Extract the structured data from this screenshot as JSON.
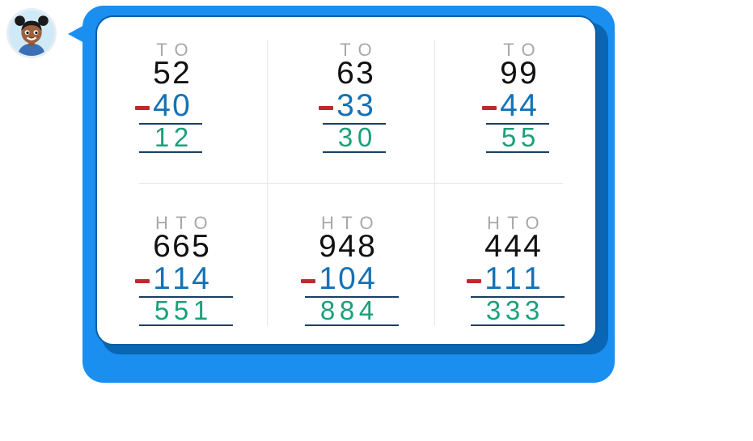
{
  "problems": [
    {
      "headers": [
        "T",
        "O"
      ],
      "top": [
        "5",
        "2"
      ],
      "bottom": [
        "4",
        "0"
      ],
      "answer": [
        "1",
        "2"
      ]
    },
    {
      "headers": [
        "T",
        "O"
      ],
      "top": [
        "6",
        "3"
      ],
      "bottom": [
        "3",
        "3"
      ],
      "answer": [
        "3",
        "0"
      ]
    },
    {
      "headers": [
        "T",
        "O"
      ],
      "top": [
        "9",
        "9"
      ],
      "bottom": [
        "4",
        "4"
      ],
      "answer": [
        "5",
        "5"
      ]
    },
    {
      "headers": [
        "H",
        "T",
        "O"
      ],
      "top": [
        "6",
        "6",
        "5"
      ],
      "bottom": [
        "1",
        "1",
        "4"
      ],
      "answer": [
        "5",
        "5",
        "1"
      ]
    },
    {
      "headers": [
        "H",
        "T",
        "O"
      ],
      "top": [
        "9",
        "4",
        "8"
      ],
      "bottom": [
        "1",
        "0",
        "4"
      ],
      "answer": [
        "8",
        "8",
        "4"
      ]
    },
    {
      "headers": [
        "H",
        "T",
        "O"
      ],
      "top": [
        "4",
        "4",
        "4"
      ],
      "bottom": [
        "1",
        "1",
        "1"
      ],
      "answer": [
        "3",
        "3",
        "3"
      ]
    }
  ],
  "colors": {
    "bubble": "#1a8ff0",
    "card_border": "#0a5fa8",
    "header": "#a8a8a8",
    "top_digits": "#111111",
    "bottom_digits": "#1572b6",
    "answer_digits": "#1aa079",
    "minus": "#c0292b",
    "rule": "#1a3e63"
  },
  "avatar": "girl-avatar-icon"
}
